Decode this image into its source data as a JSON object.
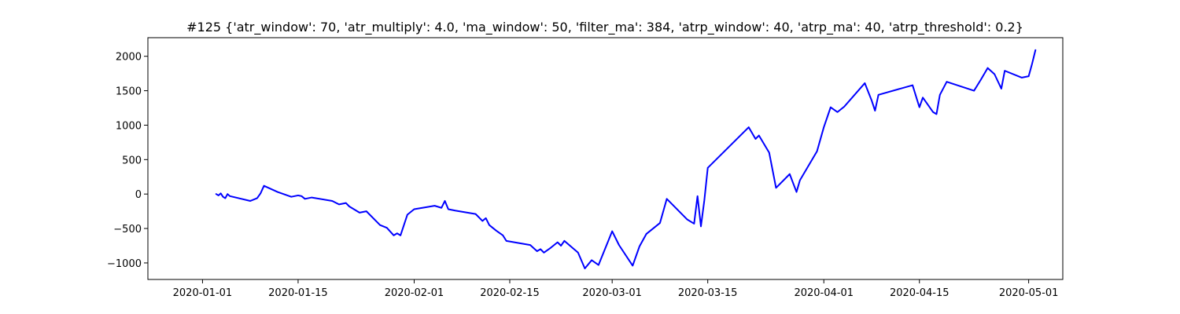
{
  "chart_data": {
    "type": "line",
    "title": "#125 {'atr_window': 70, 'atr_multiply': 4.0, 'ma_window': 50, 'filter_ma': 384, 'atrp_window': 40, 'atrp_ma': 40, 'atrp_threshold': 0.2}",
    "xlabel": "",
    "ylabel": "",
    "x_axis_type": "date",
    "xlim": [
      "2019-12-24",
      "2020-05-06"
    ],
    "ylim": [
      -1240,
      2270
    ],
    "x_ticks": [
      "2020-01-01",
      "2020-01-15",
      "2020-02-01",
      "2020-02-15",
      "2020-03-01",
      "2020-03-15",
      "2020-04-01",
      "2020-04-15",
      "2020-05-01"
    ],
    "y_ticks": [
      -1000,
      -500,
      0,
      500,
      1000,
      1500,
      2000
    ],
    "grid": false,
    "legend": "none",
    "series": [
      {
        "color": "#0000ff",
        "points": [
          [
            "2020-01-03",
            0
          ],
          [
            "2020-01-03",
            -20
          ],
          [
            "2020-01-03",
            10
          ],
          [
            "2020-01-04",
            -40
          ],
          [
            "2020-01-04",
            -60
          ],
          [
            "2020-01-04",
            0
          ],
          [
            "2020-01-05",
            -30
          ],
          [
            "2020-01-08",
            -100
          ],
          [
            "2020-01-09",
            -60
          ],
          [
            "2020-01-09",
            10
          ],
          [
            "2020-01-10",
            120
          ],
          [
            "2020-01-12",
            30
          ],
          [
            "2020-01-14",
            -40
          ],
          [
            "2020-01-15",
            -20
          ],
          [
            "2020-01-15",
            -30
          ],
          [
            "2020-01-16",
            -70
          ],
          [
            "2020-01-17",
            -50
          ],
          [
            "2020-01-20",
            -100
          ],
          [
            "2020-01-21",
            -150
          ],
          [
            "2020-01-22",
            -130
          ],
          [
            "2020-01-22",
            -180
          ],
          [
            "2020-01-23",
            -210
          ],
          [
            "2020-01-24",
            -270
          ],
          [
            "2020-01-25",
            -250
          ],
          [
            "2020-01-27",
            -450
          ],
          [
            "2020-01-28",
            -490
          ],
          [
            "2020-01-29",
            -600
          ],
          [
            "2020-01-29",
            -570
          ],
          [
            "2020-01-30",
            -600
          ],
          [
            "2020-01-31",
            -300
          ],
          [
            "2020-02-01",
            -220
          ],
          [
            "2020-02-04",
            -170
          ],
          [
            "2020-02-05",
            -200
          ],
          [
            "2020-02-05",
            -100
          ],
          [
            "2020-02-06",
            -220
          ],
          [
            "2020-02-07",
            -240
          ],
          [
            "2020-02-10",
            -290
          ],
          [
            "2020-02-11",
            -390
          ],
          [
            "2020-02-11",
            -350
          ],
          [
            "2020-02-12",
            -450
          ],
          [
            "2020-02-13",
            -530
          ],
          [
            "2020-02-14",
            -600
          ],
          [
            "2020-02-14",
            -680
          ],
          [
            "2020-02-18",
            -740
          ],
          [
            "2020-02-19",
            -830
          ],
          [
            "2020-02-19",
            -800
          ],
          [
            "2020-02-20",
            -850
          ],
          [
            "2020-02-21",
            -780
          ],
          [
            "2020-02-22",
            -700
          ],
          [
            "2020-02-22",
            -750
          ],
          [
            "2020-02-23",
            -680
          ],
          [
            "2020-02-25",
            -850
          ],
          [
            "2020-02-26",
            -1080
          ],
          [
            "2020-02-27",
            -960
          ],
          [
            "2020-02-28",
            -1030
          ],
          [
            "2020-03-01",
            -540
          ],
          [
            "2020-03-02",
            -740
          ],
          [
            "2020-03-04",
            -1040
          ],
          [
            "2020-03-05",
            -760
          ],
          [
            "2020-03-06",
            -580
          ],
          [
            "2020-03-07",
            -500
          ],
          [
            "2020-03-08",
            -420
          ],
          [
            "2020-03-09",
            -70
          ],
          [
            "2020-03-12",
            -370
          ],
          [
            "2020-03-13",
            -430
          ],
          [
            "2020-03-13",
            -30
          ],
          [
            "2020-03-14",
            -470
          ],
          [
            "2020-03-14",
            -90
          ],
          [
            "2020-03-15",
            380
          ],
          [
            "2020-03-21",
            970
          ],
          [
            "2020-03-22",
            800
          ],
          [
            "2020-03-22",
            850
          ],
          [
            "2020-03-24",
            600
          ],
          [
            "2020-03-25",
            90
          ],
          [
            "2020-03-27",
            290
          ],
          [
            "2020-03-28",
            30
          ],
          [
            "2020-03-28",
            200
          ],
          [
            "2020-03-31",
            620
          ],
          [
            "2020-04-01",
            970
          ],
          [
            "2020-04-02",
            1260
          ],
          [
            "2020-04-03",
            1190
          ],
          [
            "2020-04-04",
            1270
          ],
          [
            "2020-04-07",
            1610
          ],
          [
            "2020-04-08",
            1360
          ],
          [
            "2020-04-08",
            1210
          ],
          [
            "2020-04-09",
            1440
          ],
          [
            "2020-04-14",
            1580
          ],
          [
            "2020-04-15",
            1260
          ],
          [
            "2020-04-15",
            1400
          ],
          [
            "2020-04-16",
            1330
          ],
          [
            "2020-04-17",
            1190
          ],
          [
            "2020-04-17",
            1160
          ],
          [
            "2020-04-18",
            1440
          ],
          [
            "2020-04-19",
            1630
          ],
          [
            "2020-04-23",
            1500
          ],
          [
            "2020-04-24",
            1660
          ],
          [
            "2020-04-25",
            1830
          ],
          [
            "2020-04-26",
            1740
          ],
          [
            "2020-04-27",
            1530
          ],
          [
            "2020-04-27",
            1790
          ],
          [
            "2020-04-30",
            1690
          ],
          [
            "2020-05-01",
            1710
          ],
          [
            "2020-05-01",
            1890
          ],
          [
            "2020-05-02",
            2090
          ]
        ]
      }
    ]
  }
}
